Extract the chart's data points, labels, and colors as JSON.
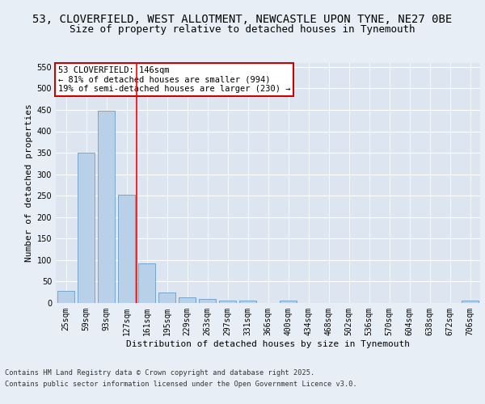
{
  "title1": "53, CLOVERFIELD, WEST ALLOTMENT, NEWCASTLE UPON TYNE, NE27 0BE",
  "title2": "Size of property relative to detached houses in Tynemouth",
  "xlabel": "Distribution of detached houses by size in Tynemouth",
  "ylabel": "Number of detached properties",
  "categories": [
    "25sqm",
    "59sqm",
    "93sqm",
    "127sqm",
    "161sqm",
    "195sqm",
    "229sqm",
    "263sqm",
    "297sqm",
    "331sqm",
    "366sqm",
    "400sqm",
    "434sqm",
    "468sqm",
    "502sqm",
    "536sqm",
    "570sqm",
    "604sqm",
    "638sqm",
    "672sqm",
    "706sqm"
  ],
  "values": [
    28,
    350,
    448,
    252,
    93,
    25,
    14,
    10,
    6,
    6,
    0,
    5,
    0,
    0,
    0,
    0,
    0,
    0,
    0,
    0,
    5
  ],
  "bar_color": "#b8d0e8",
  "bar_edge_color": "#5590c0",
  "red_line_x": 3.5,
  "annotation_text": "53 CLOVERFIELD: 146sqm\n← 81% of detached houses are smaller (994)\n19% of semi-detached houses are larger (230) →",
  "annotation_box_color": "#ffffff",
  "annotation_box_edge": "#cc0000",
  "ylim": [
    0,
    560
  ],
  "yticks": [
    0,
    50,
    100,
    150,
    200,
    250,
    300,
    350,
    400,
    450,
    500,
    550
  ],
  "background_color": "#dde6f0",
  "grid_color": "#ffffff",
  "fig_background": "#e8eef6",
  "footer1": "Contains HM Land Registry data © Crown copyright and database right 2025.",
  "footer2": "Contains public sector information licensed under the Open Government Licence v3.0.",
  "title1_fontsize": 10,
  "title2_fontsize": 9,
  "axis_fontsize": 8,
  "tick_fontsize": 7
}
